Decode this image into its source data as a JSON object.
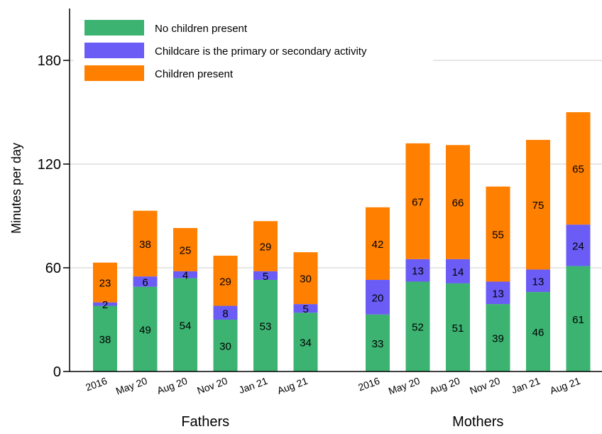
{
  "chart_data": {
    "type": "bar",
    "stacked": true,
    "ylabel": "Minutes per day",
    "xlabel": "",
    "ylim": [
      0,
      210
    ],
    "yticks": [
      0,
      60,
      120,
      180
    ],
    "grid": true,
    "legend_position": "top-left",
    "groups": [
      {
        "name": "Fathers",
        "categories": [
          "2016",
          "May 20",
          "Aug 20",
          "Nov 20",
          "Jan 21",
          "Aug 21"
        ],
        "series": [
          {
            "name": "No children present",
            "values": [
              38,
              49,
              54,
              30,
              53,
              34
            ]
          },
          {
            "name": "Childcare is the primary or secondary activity",
            "values": [
              2,
              6,
              4,
              8,
              5,
              5
            ]
          },
          {
            "name": "Children present",
            "values": [
              23,
              38,
              25,
              29,
              29,
              30
            ]
          }
        ]
      },
      {
        "name": "Mothers",
        "categories": [
          "2016",
          "May 20",
          "Aug 20",
          "Nov 20",
          "Jan 21",
          "Aug 21"
        ],
        "series": [
          {
            "name": "No children present",
            "values": [
              33,
              52,
              51,
              39,
              46,
              61
            ]
          },
          {
            "name": "Childcare is the primary or secondary activity",
            "values": [
              20,
              13,
              14,
              13,
              13,
              24
            ]
          },
          {
            "name": "Children present",
            "values": [
              42,
              67,
              66,
              55,
              75,
              65
            ]
          }
        ]
      }
    ],
    "colors": [
      "#3cb371",
      "#6a5cf5",
      "#ff7f00"
    ]
  }
}
